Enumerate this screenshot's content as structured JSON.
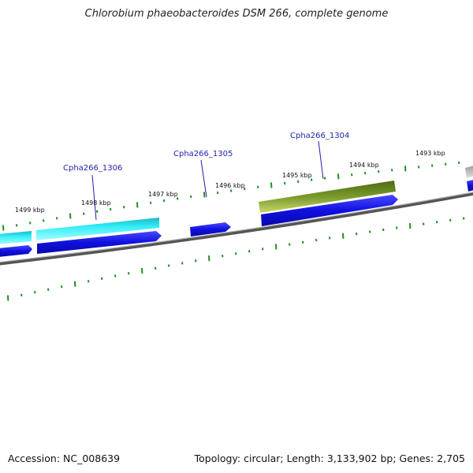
{
  "title": "Chlorobium phaeobacteroides DSM 266, complete genome",
  "footer": {
    "accession": "Accession: NC_008639",
    "summary": "Topology: circular; Length: 3,133,902 bp; Genes: 2,705"
  },
  "gene_labels": {
    "g1306": "Cpha266_1306",
    "g1305": "Cpha266_1305",
    "g1304": "Cpha266_1304"
  },
  "kbp_labels": {
    "k1499": "1499 kbp",
    "k1498": "1498 kbp",
    "k1497": "1497 kbp",
    "k1496": "1496 kbp",
    "k1495": "1495 kbp",
    "k1494": "1494 kbp",
    "k1493": "1493 kbp"
  },
  "colors": {
    "backbone": "#7a7a7a",
    "cds": "#1414e0",
    "gene_cyan": "#33e6f0",
    "gene_olive": "#6b8e23",
    "gene_grey": "#b8b8b8",
    "tick": "#1f8f1f",
    "callout": "#1f1faa"
  }
}
